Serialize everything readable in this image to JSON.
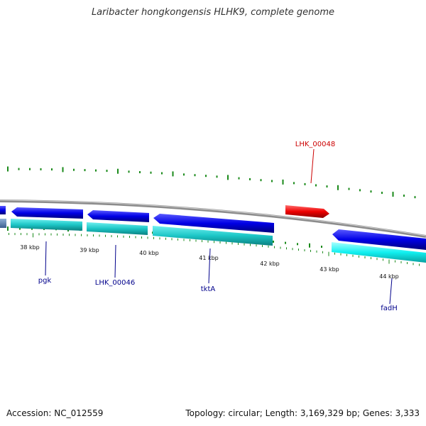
{
  "title": "Laribacter hongkongensis HLHK9, complete genome",
  "footer": {
    "accession": "Accession: NC_012559",
    "summary": "Topology: circular; Length: 3,169,329 bp; Genes: 3,333"
  },
  "colors": {
    "backbone": "#8c8c8c",
    "forward_gene": "#0000ee",
    "reverse_gene": "#18c8c8",
    "highlight_gene": "#ee1111",
    "gc_ticks": "#1a8a1a",
    "label_blue": "#00008b",
    "label_red": "#cc0000"
  },
  "kbp_labels": [
    "38 kbp",
    "39 kbp",
    "40 kbp",
    "41 kbp",
    "42 kbp",
    "43 kbp",
    "44 kbp"
  ],
  "gene_labels": [
    {
      "text": "pgk",
      "color": "blue"
    },
    {
      "text": "LHK_00046",
      "color": "blue"
    },
    {
      "text": "tktA",
      "color": "blue"
    },
    {
      "text": "fadH",
      "color": "blue"
    },
    {
      "text": "LHK_00048",
      "color": "red"
    }
  ]
}
